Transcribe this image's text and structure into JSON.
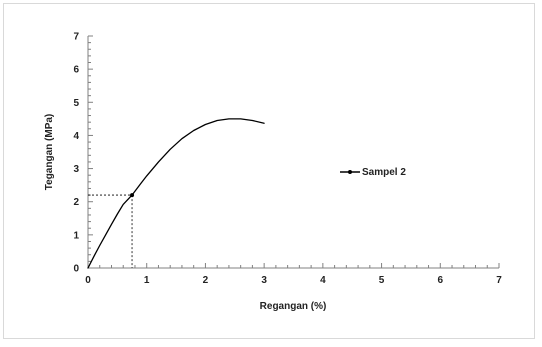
{
  "chart_data": {
    "type": "line",
    "title": "",
    "xlabel": "Regangan (%)",
    "ylabel": "Tegangan (MPa)",
    "xlim": [
      0,
      7
    ],
    "ylim": [
      0,
      7
    ],
    "xticks": [
      0,
      1,
      2,
      3,
      4,
      5,
      6,
      7
    ],
    "yticks": [
      0,
      1,
      2,
      3,
      4,
      5,
      6,
      7
    ],
    "grid": false,
    "legend_position": "right",
    "series": [
      {
        "name": "Sampel 2",
        "color": "#000000",
        "x": [
          0,
          0.1,
          0.2,
          0.3,
          0.4,
          0.5,
          0.6,
          0.75,
          0.9,
          1.0,
          1.2,
          1.4,
          1.6,
          1.8,
          2.0,
          2.2,
          2.4,
          2.6,
          2.8,
          3.0
        ],
        "y": [
          0,
          0.35,
          0.68,
          1.0,
          1.32,
          1.63,
          1.92,
          2.2,
          2.55,
          2.78,
          3.2,
          3.58,
          3.9,
          4.15,
          4.33,
          4.45,
          4.5,
          4.5,
          4.45,
          4.37
        ]
      }
    ],
    "annotations": [
      {
        "type": "marker-with-dashed-guides",
        "x": 0.75,
        "y": 2.2
      }
    ]
  }
}
